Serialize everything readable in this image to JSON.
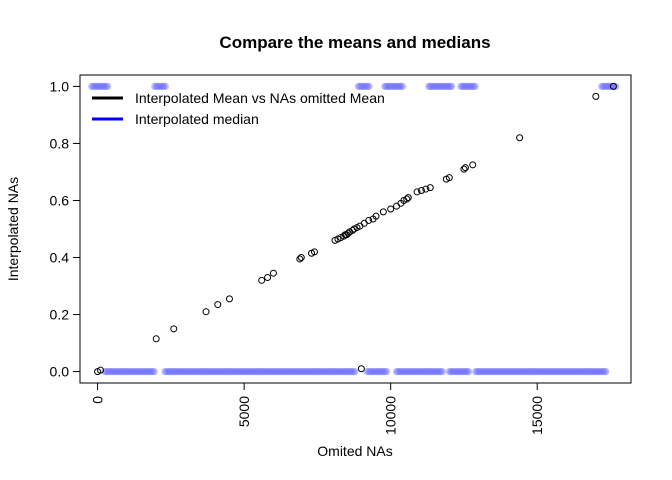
{
  "chart_data": {
    "type": "scatter",
    "title": "Compare the means and medians",
    "xlabel": "Omited NAs",
    "ylabel": "Interpolated NAs",
    "xlim": [
      -600,
      18200
    ],
    "ylim": [
      -0.04,
      1.04
    ],
    "x_ticks": [
      0,
      5000,
      10000,
      15000
    ],
    "x_tick_labels": [
      "0",
      "5000",
      "10000",
      "15000"
    ],
    "y_ticks": [
      0.0,
      0.2,
      0.4,
      0.6,
      0.8,
      1.0
    ],
    "y_tick_labels": [
      "0.0",
      "0.2",
      "0.4",
      "0.6",
      "0.8",
      "1.0"
    ],
    "grid": false,
    "legend": {
      "position": "top-left",
      "entries": [
        {
          "label": "Interpolated Mean vs NAs omitted Mean",
          "color": "#000000"
        },
        {
          "label": "Interpolated median",
          "color": "#0000ff"
        }
      ]
    },
    "series": [
      {
        "label": "Interpolated Mean vs NAs omitted Mean",
        "color": "#000000",
        "marker": "open-circle",
        "x": [
          0,
          100,
          2000,
          2600,
          3700,
          4100,
          4500,
          5600,
          5800,
          6000,
          6900,
          6950,
          7300,
          7400,
          8100,
          8200,
          8300,
          8400,
          8450,
          8500,
          8550,
          8600,
          8700,
          8750,
          8850,
          8950,
          9100,
          9250,
          9400,
          9500,
          9750,
          10000,
          10200,
          10350,
          10450,
          10550,
          10600,
          10900,
          11050,
          11200,
          11350,
          11900,
          12000,
          12500,
          12550,
          12800,
          14400,
          17000,
          17600,
          9000
        ],
        "y": [
          0.0,
          0.005,
          0.115,
          0.15,
          0.21,
          0.235,
          0.255,
          0.32,
          0.33,
          0.345,
          0.395,
          0.4,
          0.415,
          0.42,
          0.46,
          0.465,
          0.47,
          0.475,
          0.48,
          0.48,
          0.485,
          0.49,
          0.495,
          0.5,
          0.505,
          0.51,
          0.52,
          0.53,
          0.535,
          0.545,
          0.56,
          0.57,
          0.58,
          0.59,
          0.6,
          0.605,
          0.61,
          0.63,
          0.635,
          0.64,
          0.645,
          0.675,
          0.68,
          0.71,
          0.715,
          0.725,
          0.82,
          0.965,
          1.0,
          0.01
        ]
      },
      {
        "label": "Interpolated median",
        "color": "#6b6bff",
        "marker": "filled-circle",
        "ranges_y0": [
          [
            250,
            1950
          ],
          [
            2300,
            8800
          ],
          [
            9200,
            9900
          ],
          [
            10200,
            11800
          ],
          [
            12000,
            12700
          ],
          [
            12900,
            17350
          ]
        ],
        "ranges_y1": [
          [
            -200,
            350
          ],
          [
            1950,
            2350
          ],
          [
            8900,
            9300
          ],
          [
            9800,
            10400
          ],
          [
            11300,
            12100
          ],
          [
            12400,
            12900
          ],
          [
            17200,
            17700
          ]
        ]
      }
    ]
  }
}
